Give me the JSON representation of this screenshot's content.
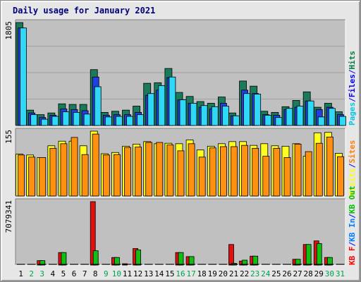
{
  "title": "Daily usage for January 2021",
  "colors": {
    "hits": "#008040",
    "files": "#0000ff",
    "pages": "#00ffff",
    "visits": "#ffff00",
    "sites": "#ff8000",
    "kbin": "#00c000",
    "kbout": "#ff0000",
    "panel_bg": "#c0c0c0",
    "day_normal": "#000000",
    "day_weekend": "#00a050",
    "separator": "#0000ff"
  },
  "chart_data": [
    {
      "type": "bar",
      "panel": "hits_files_pages",
      "max_label": "1805",
      "ylim": [
        0,
        1805
      ],
      "legend": [
        {
          "text": "Pages",
          "color": "#00c8e6"
        },
        {
          "text": "/",
          "color": "#0000ff"
        },
        {
          "text": "Files",
          "color": "#0000ff"
        },
        {
          "text": "/",
          "color": "#0000ff"
        },
        {
          "text": "Hits",
          "color": "#008040"
        }
      ],
      "categories": [
        "1",
        "2",
        "3",
        "4",
        "5",
        "6",
        "7",
        "8",
        "9",
        "10",
        "11",
        "12",
        "13",
        "14",
        "15",
        "16",
        "17",
        "18",
        "19",
        "20",
        "21",
        "22",
        "23",
        "24",
        "25",
        "26",
        "27",
        "28",
        "29",
        "30",
        "31"
      ],
      "series": [
        {
          "name": "Hits",
          "values": [
            1805,
            270,
            190,
            220,
            380,
            370,
            370,
            980,
            230,
            250,
            270,
            340,
            740,
            750,
            1000,
            580,
            510,
            420,
            390,
            500,
            220,
            780,
            690,
            250,
            230,
            330,
            440,
            590,
            320,
            390,
            240
          ]
        },
        {
          "name": "Files",
          "values": [
            1710,
            220,
            140,
            180,
            290,
            280,
            260,
            850,
            180,
            190,
            190,
            230,
            530,
            620,
            840,
            450,
            390,
            320,
            290,
            390,
            170,
            620,
            560,
            190,
            180,
            280,
            320,
            430,
            280,
            320,
            190
          ]
        },
        {
          "name": "Pages",
          "values": [
            1710,
            190,
            110,
            160,
            240,
            230,
            200,
            680,
            150,
            160,
            160,
            190,
            560,
            700,
            850,
            450,
            390,
            350,
            330,
            340,
            170,
            560,
            550,
            180,
            140,
            300,
            340,
            430,
            150,
            300,
            160
          ]
        }
      ]
    },
    {
      "type": "bar",
      "panel": "visits_sites",
      "max_label": "155",
      "ylim": [
        0,
        155
      ],
      "legend": [
        {
          "text": "Visits",
          "color": "#ffff00"
        },
        {
          "text": "/",
          "color": "#0000ff"
        },
        {
          "text": "Sites",
          "color": "#ff8000"
        }
      ],
      "categories": [
        "1",
        "2",
        "3",
        "4",
        "5",
        "6",
        "7",
        "8",
        "9",
        "10",
        "11",
        "12",
        "13",
        "14",
        "15",
        "16",
        "17",
        "18",
        "19",
        "20",
        "21",
        "22",
        "23",
        "24",
        "25",
        "26",
        "27",
        "28",
        "29",
        "30",
        "31"
      ],
      "series": [
        {
          "name": "Visits",
          "values": [
            100,
            98,
            92,
            120,
            131,
            131,
            120,
            155,
            101,
            104,
            119,
            124,
            130,
            125,
            126,
            125,
            134,
            110,
            119,
            125,
            130,
            130,
            121,
            125,
            120,
            119,
            125,
            95,
            151,
            152,
            102
          ]
        },
        {
          "name": "Sites",
          "values": [
            98,
            93,
            92,
            114,
            125,
            140,
            99,
            148,
            98,
            99,
            116,
            117,
            128,
            128,
            122,
            108,
            125,
            93,
            115,
            118,
            118,
            121,
            114,
            95,
            114,
            92,
            124,
            106,
            126,
            141,
            94
          ]
        }
      ]
    },
    {
      "type": "bar",
      "panel": "kbin_kbout",
      "max_label": "7079341",
      "ylim": [
        0,
        7079341
      ],
      "legend": [
        {
          "text": "KB F",
          "color": "#ff0000"
        },
        {
          "text": "/",
          "color": "#0000ff"
        },
        {
          "text": "KB In",
          "color": "#0080ff"
        },
        {
          "text": "/",
          "color": "#0000ff"
        },
        {
          "text": "KB Out",
          "color": "#00c000"
        }
      ],
      "categories": [
        "1",
        "2",
        "3",
        "4",
        "5",
        "6",
        "7",
        "8",
        "9",
        "10",
        "11",
        "12",
        "13",
        "14",
        "15",
        "16",
        "17",
        "18",
        "19",
        "20",
        "21",
        "22",
        "23",
        "24",
        "25",
        "26",
        "27",
        "28",
        "29",
        "30",
        "31"
      ],
      "series": [
        {
          "name": "KB F",
          "values": [
            0,
            0,
            500000,
            0,
            1400000,
            0,
            0,
            7079341,
            0,
            850000,
            150000,
            1850000,
            0,
            0,
            0,
            1400000,
            950000,
            0,
            0,
            0,
            2300000,
            450000,
            1000000,
            0,
            0,
            0,
            650000,
            2300000,
            2700000,
            850000,
            0
          ]
        },
        {
          "name": "KB Out",
          "values": [
            0,
            0,
            500000,
            0,
            1400000,
            0,
            0,
            1600000,
            0,
            850000,
            0,
            1700000,
            0,
            0,
            0,
            1400000,
            950000,
            0,
            0,
            0,
            200000,
            550000,
            1000000,
            0,
            0,
            0,
            650000,
            2300000,
            2400000,
            850000,
            0
          ]
        }
      ]
    }
  ],
  "day_labels": [
    "1",
    "2",
    "3",
    "4",
    "5",
    "6",
    "7",
    "8",
    "9",
    "10",
    "11",
    "12",
    "13",
    "14",
    "15",
    "16",
    "17",
    "18",
    "19",
    "20",
    "21",
    "22",
    "23",
    "24",
    "25",
    "26",
    "27",
    "28",
    "29",
    "30",
    "31"
  ],
  "weekend_days": [
    "2",
    "3",
    "9",
    "10",
    "16",
    "17",
    "23",
    "24",
    "30",
    "31"
  ]
}
